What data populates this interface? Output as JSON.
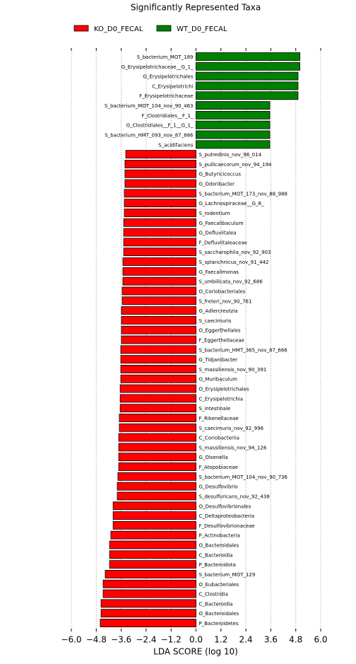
{
  "chart_data": {
    "type": "bar",
    "orientation": "horizontal",
    "title": "Significantly Represented Taxa",
    "x_label": "LDA SCORE (log 10)",
    "xlim": [
      -6,
      6
    ],
    "xticks": [
      {
        "value": -6,
        "label": "−6.0"
      },
      {
        "value": -4.8,
        "label": "−4.8"
      },
      {
        "value": -3.6,
        "label": "−3.6"
      },
      {
        "value": -2.4,
        "label": "−2.4"
      },
      {
        "value": -1.2,
        "label": "−1.2"
      },
      {
        "value": 0,
        "label": "0.0"
      },
      {
        "value": 1.2,
        "label": "1.2"
      },
      {
        "value": 2.4,
        "label": "2.4"
      },
      {
        "value": 3.6,
        "label": "3.6"
      },
      {
        "value": 4.8,
        "label": "4.8"
      },
      {
        "value": 6,
        "label": "6.0"
      }
    ],
    "grid": true,
    "legend": "top",
    "series": [
      {
        "name": "KO_D0_FECAL",
        "color": "#ff0000",
        "categories": [
          "P_Bacteroidetes",
          "O_Bacteroidales",
          "C_Bacteroidia",
          "C_Clostridia",
          "O_Eubacteriales",
          "S_bacterium_MOT_129",
          "P_Bacteroidota",
          "C_Bacteroidia",
          "O_Bacteroidales",
          "P_Actinobacteria",
          "F_Desulfovibrionaceae",
          "C_Deltaproteobacteria",
          "O_Desulfovibrionales",
          "S_desulfuricans_nov_92_438",
          "G_Desulfovibrio",
          "S_bacterium_MOT_104_nov_90_736",
          "F_Atopobiaceae",
          "G_Olsenella",
          "S_massiliensis_nov_94_126",
          "C_Coriobacteriia",
          "S_caecimuris_nov_92_996",
          "F_Rikenellaceae",
          "S_intestinale",
          "C_Erysipelotrichia",
          "O_Erysipelotrichales",
          "G_Muribaculum",
          "S_massiliensis_nov_90_391",
          "G_Tidjanibacter",
          "S_bacterium_HMT_365_nov_87_666",
          "F_Eggerthellaceae",
          "O_Eggerthellales",
          "S_caecimuris",
          "G_Adlercreutzia",
          "S_freteri_nov_90_761",
          "O_Coriobacteriales",
          "S_umbilicata_nov_92_686",
          "G_Faecalimonas",
          "S_splanchnicus_nov_91_442",
          "S_saccharophila_nov_92_903",
          "F_Defluviitaleaceae",
          "G_Defluviitalea",
          "G_Faecalibaculum",
          "S_rodentium",
          "G_Lachnospiraceae__G_8_",
          "S_bacterium_MOT_173_nov_88_988",
          "G_Odoribacter",
          "G_Butyricicoccus",
          "S_pullicaecorum_nov_94_194",
          "S_putredinis_nov_96_014"
        ],
        "values": [
          -4.61,
          -4.57,
          -4.57,
          -4.47,
          -4.47,
          -4.37,
          -4.16,
          -4.16,
          -4.16,
          -4.1,
          -3.99,
          -3.99,
          -3.99,
          -3.79,
          -3.79,
          -3.76,
          -3.72,
          -3.72,
          -3.72,
          -3.72,
          -3.69,
          -3.69,
          -3.65,
          -3.65,
          -3.65,
          -3.62,
          -3.62,
          -3.62,
          -3.62,
          -3.59,
          -3.59,
          -3.59,
          -3.59,
          -3.55,
          -3.55,
          -3.52,
          -3.52,
          -3.52,
          -3.48,
          -3.48,
          -3.48,
          -3.48,
          -3.45,
          -3.45,
          -3.45,
          -3.42,
          -3.42,
          -3.42,
          -3.38
        ]
      },
      {
        "name": "WT_D0_FECAL",
        "color": "#008000",
        "categories": [
          "S_acidifaciens",
          "S_bacterium_HMT_093_nov_87_886",
          "G_Clostridiales__F_1__G_1_",
          "F_Clostridiales__F_1_",
          "S_bacterium_MOT_104_nov_90_463",
          "F_Erysipelotrichaceae",
          "C_Erysipelotrichi",
          "O_Erysipelotrichales",
          "G_Erysipelotrichaceae__G_1_",
          "S_bacterium_MOT_189"
        ],
        "values": [
          3.55,
          3.55,
          3.55,
          3.55,
          3.55,
          4.91,
          4.91,
          4.91,
          5.0,
          5.0
        ]
      }
    ]
  }
}
